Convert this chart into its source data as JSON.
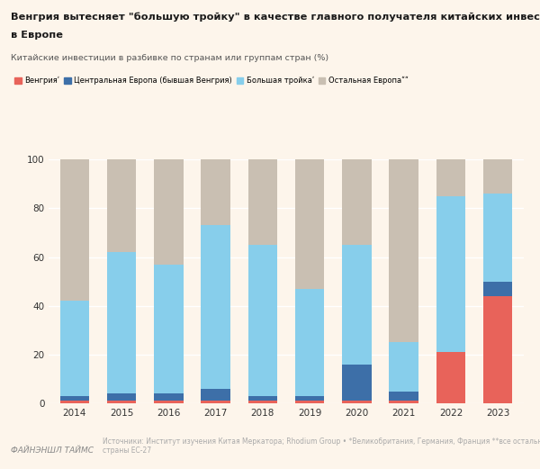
{
  "years": [
    2014,
    2015,
    2016,
    2017,
    2018,
    2019,
    2020,
    2021,
    2022,
    2023
  ],
  "hungary": [
    1,
    1,
    1,
    1,
    1,
    1,
    1,
    1,
    21,
    44
  ],
  "central_europe": [
    2,
    3,
    3,
    5,
    2,
    2,
    15,
    4,
    0,
    6
  ],
  "big_three": [
    39,
    58,
    53,
    67,
    62,
    44,
    49,
    20,
    64,
    36
  ],
  "other_europe": [
    58,
    38,
    43,
    27,
    35,
    53,
    35,
    75,
    15,
    14
  ],
  "colors": {
    "hungary": "#e8635a",
    "central_europe": "#3d6fa8",
    "big_three": "#87ceeb",
    "other_europe": "#c9bfb2"
  },
  "legend_labels": [
    "Венгрияʹ",
    "Центральная Европа (бывшая Венгрия)",
    "Большая тройкаʹ",
    "Остальная Европаʺʺ"
  ],
  "title_line1": "Венгрия вытесняет \"большую тройку\" в качестве главного получателя китайских инвестиций",
  "title_line2": "в Европе",
  "subtitle": "Китайские инвестиции в разбивке по странам или группам стран (%)",
  "footer_left": "ФАЙНЭНШЛ ТАЙМС",
  "footer_right": "Источники: Институт изучения Китая Меркатора; Rhodium Group • *Великобритания, Германия, Франция **все остальные\nстраны ЕС-27",
  "background_color": "#fdf5eb",
  "ylim": [
    0,
    100
  ],
  "bar_width": 0.62
}
